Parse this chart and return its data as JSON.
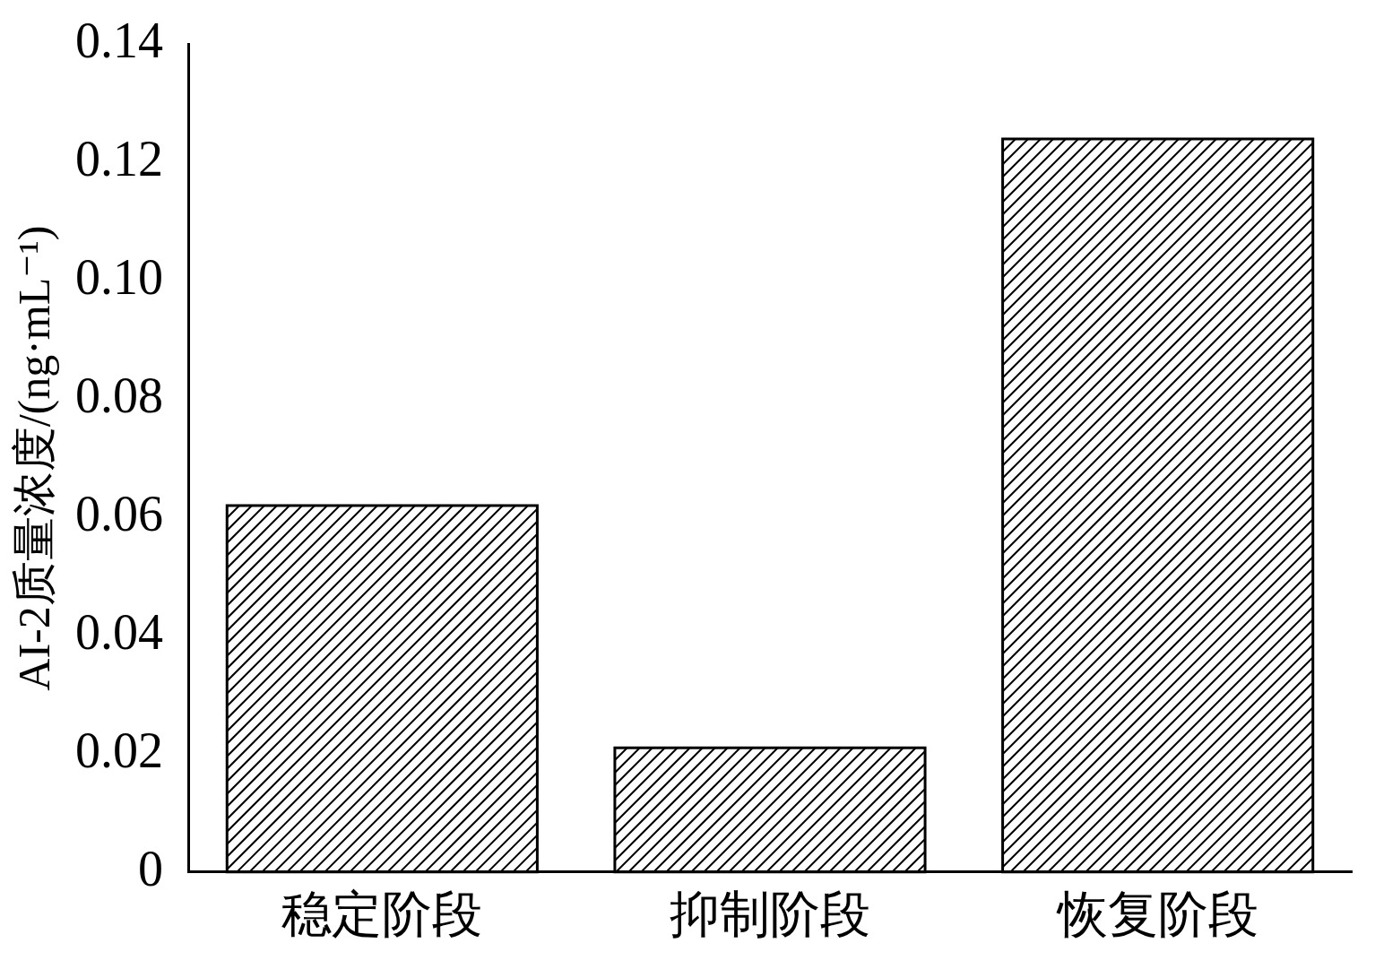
{
  "chart_data": {
    "type": "bar",
    "ylabel": "AI-2质量浓度/(ng·mL⁻¹)",
    "categories": [
      "稳定阶段",
      "抑制阶段",
      "恢复阶段"
    ],
    "values": [
      0.062,
      0.021,
      0.124
    ],
    "color": "#000000",
    "ylim": [
      0,
      0.14
    ],
    "yticks": [
      0,
      0.02,
      0.04,
      0.06,
      0.08,
      {
        "value": 0.1,
        "label": "0.10"
      },
      0.12,
      0.14
    ],
    "grid": false,
    "legend": false
  }
}
